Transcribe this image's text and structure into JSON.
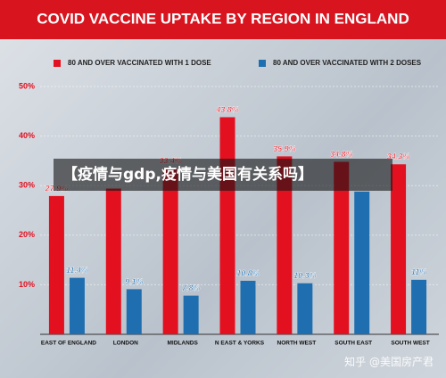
{
  "chart_data": {
    "type": "bar",
    "title": "COVID VACCINE UPTAKE BY REGION IN ENGLAND",
    "categories": [
      "EAST OF ENGLAND",
      "LONDON",
      "MIDLANDS",
      "N EAST & YORKS",
      "NORTH WEST",
      "SOUTH EAST",
      "SOUTH WEST"
    ],
    "series": [
      {
        "name": "80 AND OVER VACCINATED WITH 1 DOSE",
        "color": "#e3101f",
        "values": [
          27.9,
          29.4,
          33.4,
          43.8,
          35.9,
          34.8,
          34.3
        ],
        "value_labels": [
          "27.9%",
          null,
          "33.4%",
          "43.8%",
          "35.9%",
          "34.8%",
          "34.3%"
        ]
      },
      {
        "name": "80 AND OVER VACCINATED WITH 2 DOSES",
        "color": "#1f6fb0",
        "values": [
          11.4,
          9.1,
          7.8,
          10.8,
          10.3,
          28.8,
          11
        ],
        "value_labels": [
          "11.4%",
          "9.1%",
          "7.8%",
          "10.8%",
          "10.3%",
          null,
          "11%"
        ]
      }
    ],
    "ylim": [
      0,
      50
    ],
    "yticks": [
      {
        "value": 10,
        "label": "10%"
      },
      {
        "value": 20,
        "label": "20%"
      },
      {
        "value": 30,
        "label": "30%"
      },
      {
        "value": 40,
        "label": "40%"
      },
      {
        "value": 50,
        "label": "50%"
      }
    ],
    "grid": true
  },
  "overlay": {
    "caption": "【疫情与gdp,疫情与美国有关系吗】",
    "watermark": "知乎 @美国房产君"
  }
}
